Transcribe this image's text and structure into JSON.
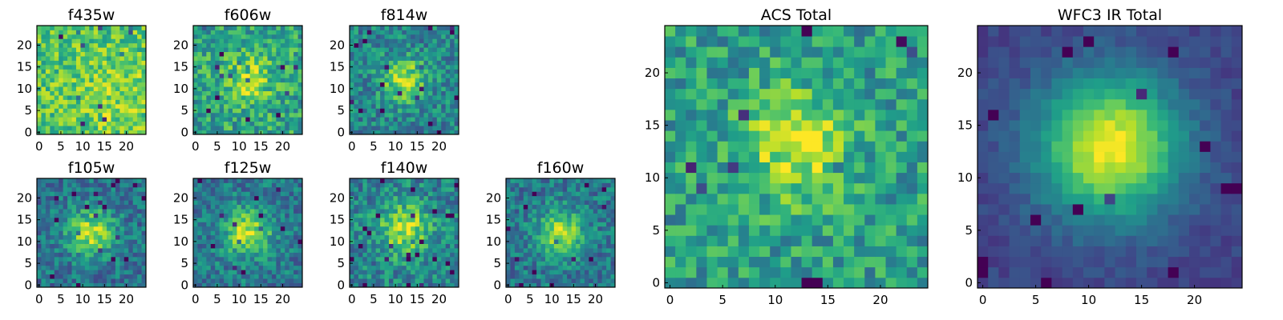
{
  "figure": {
    "grid_size": 25,
    "colormap": "viridis"
  },
  "chart_data": [
    {
      "type": "heatmap",
      "title": "f435w",
      "xticks": [
        0,
        5,
        10,
        15,
        20
      ],
      "yticks": [
        0,
        5,
        10,
        15,
        20
      ],
      "xlim": [
        0,
        24
      ],
      "ylim": [
        0,
        24
      ],
      "seed": 11,
      "peak": [
        18,
        8
      ],
      "sigma": 6.0,
      "amplitude": 0.12,
      "base": 0.72,
      "noise": 0.2
    },
    {
      "type": "heatmap",
      "title": "f606w",
      "xticks": [
        0,
        5,
        10,
        15,
        20
      ],
      "yticks": [
        0,
        5,
        10,
        15,
        20
      ],
      "xlim": [
        0,
        24
      ],
      "ylim": [
        0,
        24
      ],
      "seed": 23,
      "peak": [
        12,
        12
      ],
      "sigma": 4.0,
      "amplitude": 0.3,
      "base": 0.58,
      "noise": 0.22
    },
    {
      "type": "heatmap",
      "title": "f814w",
      "xticks": [
        0,
        5,
        10,
        15,
        20
      ],
      "yticks": [
        0,
        5,
        10,
        15,
        20
      ],
      "xlim": [
        0,
        24
      ],
      "ylim": [
        0,
        24
      ],
      "seed": 37,
      "peak": [
        12,
        12
      ],
      "sigma": 3.5,
      "amplitude": 0.45,
      "base": 0.45,
      "noise": 0.2
    },
    {
      "type": "heatmap",
      "title": "f105w",
      "xticks": [
        0,
        5,
        10,
        15,
        20
      ],
      "yticks": [
        0,
        5,
        10,
        15,
        20
      ],
      "xlim": [
        0,
        24
      ],
      "ylim": [
        0,
        24
      ],
      "seed": 41,
      "peak": [
        12,
        12
      ],
      "sigma": 3.8,
      "amplitude": 0.5,
      "base": 0.38,
      "noise": 0.18
    },
    {
      "type": "heatmap",
      "title": "f125w",
      "xticks": [
        0,
        5,
        10,
        15,
        20
      ],
      "yticks": [
        0,
        5,
        10,
        15,
        20
      ],
      "xlim": [
        0,
        24
      ],
      "ylim": [
        0,
        24
      ],
      "seed": 53,
      "peak": [
        12,
        12
      ],
      "sigma": 3.8,
      "amplitude": 0.5,
      "base": 0.4,
      "noise": 0.18
    },
    {
      "type": "heatmap",
      "title": "f140w",
      "xticks": [
        0,
        5,
        10,
        15,
        20
      ],
      "yticks": [
        0,
        5,
        10,
        15,
        20
      ],
      "xlim": [
        0,
        24
      ],
      "ylim": [
        0,
        24
      ],
      "seed": 67,
      "peak": [
        12,
        13
      ],
      "sigma": 4.0,
      "amplitude": 0.45,
      "base": 0.45,
      "noise": 0.2
    },
    {
      "type": "heatmap",
      "title": "f160w",
      "xticks": [
        0,
        5,
        10,
        15,
        20
      ],
      "yticks": [
        0,
        5,
        10,
        15,
        20
      ],
      "xlim": [
        0,
        24
      ],
      "ylim": [
        0,
        24
      ],
      "seed": 79,
      "peak": [
        12,
        12
      ],
      "sigma": 3.6,
      "amplitude": 0.5,
      "base": 0.4,
      "noise": 0.18
    },
    {
      "type": "heatmap",
      "title": "ACS Total",
      "xticks": [
        0,
        5,
        10,
        15,
        20
      ],
      "yticks": [
        0,
        5,
        10,
        15,
        20
      ],
      "xlim": [
        0,
        24
      ],
      "ylim": [
        0,
        24
      ],
      "seed": 97,
      "peak": [
        12,
        13
      ],
      "sigma": 3.6,
      "amplitude": 0.38,
      "base": 0.55,
      "noise": 0.2
    },
    {
      "type": "heatmap",
      "title": "WFC3 IR Total",
      "xticks": [
        0,
        5,
        10,
        15,
        20
      ],
      "yticks": [
        0,
        5,
        10,
        15,
        20
      ],
      "xlim": [
        0,
        24
      ],
      "ylim": [
        0,
        24
      ],
      "seed": 101,
      "peak": [
        12,
        13
      ],
      "sigma": 4.8,
      "amplitude": 0.78,
      "base": 0.2,
      "noise": 0.06
    }
  ]
}
